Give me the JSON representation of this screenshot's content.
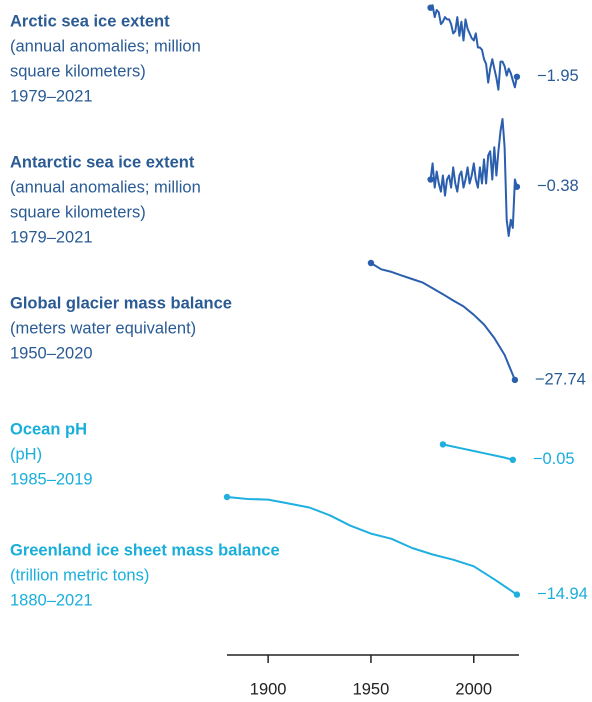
{
  "chart_data": {
    "type": "line",
    "xlim": [
      1880,
      2022
    ],
    "xticks": [
      1900,
      1950,
      2000
    ],
    "panels": [
      {
        "title": "Arctic sea ice extent",
        "subtitle": [
          "(annual anomalies; million",
          "square kilometers)"
        ],
        "period": "1979–2021",
        "color": "#2b5fae",
        "text_color": "#2a5b94",
        "ylim": [
          -2.6,
          1.2
        ],
        "x": [
          1979,
          1980,
          1981,
          1982,
          1983,
          1984,
          1985,
          1986,
          1987,
          1988,
          1989,
          1990,
          1991,
          1992,
          1993,
          1994,
          1995,
          1996,
          1997,
          1998,
          1999,
          2000,
          2001,
          2002,
          2003,
          2004,
          2005,
          2006,
          2007,
          2008,
          2009,
          2010,
          2011,
          2012,
          2013,
          2014,
          2015,
          2016,
          2017,
          2018,
          2019,
          2020,
          2021
        ],
        "values": [
          1.0,
          1.1,
          0.6,
          0.9,
          0.8,
          0.3,
          0.4,
          0.6,
          0.5,
          0.5,
          0.3,
          -0.1,
          0.0,
          0.6,
          -0.2,
          0.4,
          -0.4,
          0.5,
          0.1,
          -0.1,
          -0.3,
          -0.4,
          -0.1,
          -0.7,
          -0.7,
          -0.8,
          -1.2,
          -1.4,
          -2.2,
          -1.6,
          -1.2,
          -1.6,
          -2.0,
          -2.5,
          -1.3,
          -1.3,
          -1.5,
          -1.9,
          -1.6,
          -1.8,
          -2.1,
          -2.4,
          -1.95
        ],
        "value_label": "−1.95"
      },
      {
        "title": "Antarctic sea ice extent",
        "subtitle": [
          "(annual anomalies; million",
          "square kilometers)"
        ],
        "period": "1979–2021",
        "color": "#2b5fae",
        "text_color": "#2a5b94",
        "ylim": [
          -1.7,
          1.4
        ],
        "x": [
          1979,
          1980,
          1981,
          1982,
          1983,
          1984,
          1985,
          1986,
          1987,
          1988,
          1989,
          1990,
          1991,
          1992,
          1993,
          1994,
          1995,
          1996,
          1997,
          1998,
          1999,
          2000,
          2001,
          2002,
          2003,
          2004,
          2005,
          2006,
          2007,
          2008,
          2009,
          2010,
          2011,
          2012,
          2013,
          2014,
          2015,
          2016,
          2017,
          2018,
          2019,
          2020,
          2021
        ],
        "values": [
          -0.2,
          0.2,
          -0.4,
          0.0,
          -0.3,
          -0.5,
          -0.1,
          -0.6,
          -0.2,
          -0.1,
          -0.4,
          0.1,
          -0.3,
          -0.5,
          -0.1,
          0.0,
          -0.4,
          -0.2,
          0.1,
          -0.3,
          -0.1,
          0.2,
          -0.2,
          -0.4,
          0.1,
          -0.3,
          0.3,
          -0.3,
          0.4,
          0.5,
          -0.2,
          0.6,
          -0.1,
          0.5,
          1.0,
          1.3,
          0.6,
          -1.2,
          -1.6,
          -1.2,
          -1.4,
          -0.2,
          -0.38
        ],
        "value_label": "−0.38"
      },
      {
        "title": "Global glacier mass balance",
        "subtitle": [
          "(meters water equivalent)"
        ],
        "period": "1950–2020",
        "color": "#2b5fae",
        "text_color": "#2a5b94",
        "ylim": [
          -28,
          0
        ],
        "x": [
          1950,
          1955,
          1960,
          1965,
          1970,
          1975,
          1980,
          1985,
          1990,
          1995,
          2000,
          2005,
          2010,
          2015,
          2020
        ],
        "values": [
          0,
          -1.5,
          -2.1,
          -3.0,
          -3.8,
          -4.6,
          -6.0,
          -7.4,
          -8.9,
          -10.3,
          -12.3,
          -14.6,
          -17.8,
          -21.8,
          -27.74
        ],
        "value_label": "−27.74"
      },
      {
        "title": "Ocean pH",
        "subtitle": [
          "(pH)"
        ],
        "period": "1985–2019",
        "color": "#1fb0e0",
        "text_color": "#1aaedb",
        "ylim": [
          -0.06,
          0.04
        ],
        "x": [
          1985,
          1990,
          1995,
          2000,
          2005,
          2010,
          2015,
          2019
        ],
        "values": [
          0.02,
          0.01,
          0.0,
          -0.01,
          -0.02,
          -0.03,
          -0.04,
          -0.05
        ],
        "value_label": "−0.05"
      },
      {
        "title": "Greenland ice sheet mass balance",
        "subtitle": [
          "(trillion metric tons)"
        ],
        "period": "1880–2021",
        "color": "#1fb0e0",
        "text_color": "#1aaedb",
        "ylim": [
          -15,
          0
        ],
        "x": [
          1880,
          1890,
          1900,
          1910,
          1920,
          1930,
          1940,
          1950,
          1960,
          1970,
          1980,
          1990,
          2000,
          2010,
          2021
        ],
        "values": [
          0,
          -0.3,
          -0.4,
          -1.0,
          -1.6,
          -2.8,
          -4.4,
          -5.6,
          -6.4,
          -7.8,
          -8.8,
          -9.6,
          -10.6,
          -12.6,
          -14.94
        ],
        "value_label": "−14.94"
      }
    ]
  }
}
